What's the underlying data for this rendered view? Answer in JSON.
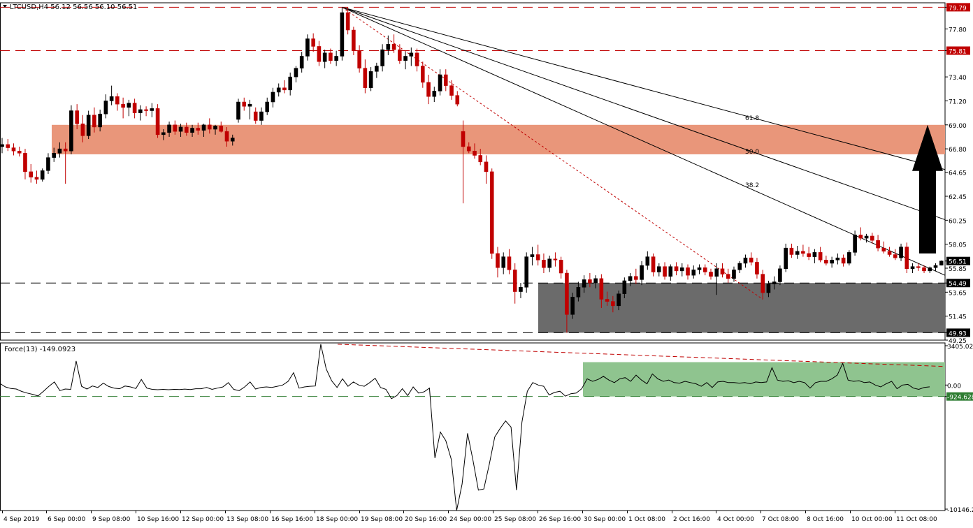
{
  "chart_data": [
    {
      "type": "candlestick",
      "title": "LTCUSD,H4  56.12 56.56 56.10 56.51",
      "symbol": "LTCUSD",
      "timeframe": "H4",
      "last_ohlc": {
        "open": 56.12,
        "high": 56.56,
        "low": 56.1,
        "close": 56.51
      },
      "ylim": [
        49.25,
        80.2
      ],
      "y_ticks": [
        79.79,
        77.8,
        75.81,
        73.4,
        71.2,
        69.0,
        66.8,
        64.65,
        62.45,
        60.25,
        58.05,
        56.51,
        55.85,
        54.49,
        53.65,
        51.45,
        49.93,
        49.25
      ],
      "y_tick_labels": [
        "79.79",
        "77.80",
        "75.81",
        "73.40",
        "71.20",
        "69.00",
        "66.80",
        "64.65",
        "62.45",
        "60.25",
        "58.05",
        "56.51",
        "55.85",
        "54.49",
        "53.65",
        "51.45",
        "49.93",
        "49.25"
      ],
      "highlighted_levels": [
        {
          "value": 79.79,
          "label": "79.79",
          "color": "#c00000"
        },
        {
          "value": 75.81,
          "label": "75.81",
          "color": "#c00000"
        },
        {
          "value": 56.51,
          "label": "56.51",
          "color": "#000000"
        },
        {
          "value": 54.49,
          "label": "54.49",
          "color": "#000000"
        },
        {
          "value": 49.93,
          "label": "49.93",
          "color": "#000000"
        }
      ],
      "x_labels": [
        "4 Sep 2019",
        "6 Sep 00:00",
        "9 Sep 08:00",
        "10 Sep 16:00",
        "12 Sep 00:00",
        "13 Sep 08:00",
        "16 Sep 16:00",
        "18 Sep 00:00",
        "19 Sep 08:00",
        "20 Sep 16:00",
        "24 Sep 00:00",
        "25 Sep 08:00",
        "26 Sep 16:00",
        "30 Sep 00:00",
        "1 Oct 08:00",
        "2 Oct 16:00",
        "4 Oct 00:00",
        "7 Oct 08:00",
        "8 Oct 16:00",
        "10 Oct 00:00",
        "11 Oct 08:00"
      ],
      "fib_labels": [
        "38.2",
        "50.0",
        "61.8"
      ],
      "resistance_zone": {
        "low": 66.3,
        "high": 69.0,
        "color": "#e9967a"
      },
      "support_zone": {
        "low": 49.93,
        "high": 54.49,
        "color": "#6b6b6b"
      },
      "colors": {
        "bull": "#000000",
        "bear": "#c00000",
        "arrow": "#000000"
      },
      "ohlc": [
        [
          67.0,
          67.8,
          66.4,
          67.2
        ],
        [
          67.2,
          67.7,
          66.6,
          66.9
        ],
        [
          66.9,
          67.3,
          66.2,
          66.6
        ],
        [
          66.6,
          67.0,
          66.1,
          66.4
        ],
        [
          66.4,
          66.8,
          64.0,
          64.7
        ],
        [
          64.7,
          65.4,
          63.7,
          64.2
        ],
        [
          64.2,
          64.8,
          63.6,
          64.0
        ],
        [
          64.0,
          65.0,
          63.8,
          64.8
        ],
        [
          64.8,
          66.4,
          64.5,
          66.0
        ],
        [
          66.0,
          66.9,
          65.6,
          66.4
        ],
        [
          66.4,
          67.4,
          66.0,
          66.8
        ],
        [
          66.8,
          67.4,
          63.6,
          66.6
        ],
        [
          66.6,
          70.8,
          66.3,
          70.3
        ],
        [
          70.3,
          70.9,
          68.6,
          69.1
        ],
        [
          69.1,
          69.9,
          67.4,
          68.0
        ],
        [
          68.0,
          70.3,
          67.7,
          69.9
        ],
        [
          69.9,
          70.6,
          68.3,
          68.8
        ],
        [
          68.8,
          70.4,
          68.4,
          70.0
        ],
        [
          70.0,
          71.8,
          69.6,
          71.2
        ],
        [
          71.2,
          72.6,
          70.8,
          71.6
        ],
        [
          71.6,
          71.9,
          70.3,
          70.9
        ],
        [
          70.9,
          71.5,
          69.6,
          70.6
        ],
        [
          70.6,
          71.3,
          69.8,
          71.0
        ],
        [
          71.0,
          71.4,
          69.6,
          70.1
        ],
        [
          70.1,
          70.8,
          69.4,
          70.4
        ],
        [
          70.4,
          70.7,
          69.8,
          70.3
        ],
        [
          70.3,
          71.0,
          69.7,
          70.5
        ],
        [
          70.5,
          70.9,
          67.8,
          68.1
        ],
        [
          68.1,
          68.6,
          67.6,
          68.3
        ],
        [
          68.3,
          69.3,
          67.9,
          69.0
        ],
        [
          69.0,
          69.4,
          68.1,
          68.4
        ],
        [
          68.4,
          69.1,
          67.9,
          68.8
        ],
        [
          68.8,
          69.2,
          68.0,
          68.3
        ],
        [
          68.3,
          69.0,
          67.9,
          68.7
        ],
        [
          68.7,
          69.2,
          68.1,
          68.5
        ],
        [
          68.5,
          69.1,
          67.9,
          69.0
        ],
        [
          69.0,
          69.6,
          68.2,
          68.6
        ],
        [
          68.6,
          69.0,
          68.1,
          68.9
        ],
        [
          68.9,
          69.3,
          68.3,
          68.4
        ],
        [
          68.4,
          68.8,
          67.0,
          67.5
        ],
        [
          67.5,
          68.1,
          67.1,
          67.8
        ],
        [
          69.5,
          71.4,
          69.2,
          71.1
        ],
        [
          71.1,
          71.5,
          70.3,
          70.7
        ],
        [
          70.7,
          71.3,
          69.5,
          70.9
        ],
        [
          70.2,
          70.6,
          69.1,
          69.4
        ],
        [
          69.4,
          70.6,
          69.0,
          70.2
        ],
        [
          70.2,
          71.5,
          69.9,
          71.1
        ],
        [
          71.1,
          72.4,
          70.6,
          72.0
        ],
        [
          72.0,
          72.8,
          71.6,
          72.4
        ],
        [
          72.4,
          73.1,
          71.9,
          72.2
        ],
        [
          72.2,
          73.8,
          71.7,
          73.4
        ],
        [
          73.4,
          74.4,
          72.9,
          74.2
        ],
        [
          74.2,
          75.7,
          73.8,
          75.3
        ],
        [
          75.3,
          77.3,
          74.9,
          76.9
        ],
        [
          76.9,
          77.4,
          75.7,
          76.2
        ],
        [
          76.2,
          76.7,
          74.4,
          74.8
        ],
        [
          74.8,
          75.9,
          74.2,
          75.6
        ],
        [
          75.6,
          76.0,
          74.6,
          74.9
        ],
        [
          74.9,
          75.8,
          74.4,
          75.3
        ],
        [
          75.3,
          79.8,
          74.9,
          79.3
        ],
        [
          79.3,
          79.8,
          77.3,
          77.7
        ],
        [
          77.7,
          78.0,
          75.4,
          75.8
        ],
        [
          75.8,
          76.3,
          73.8,
          74.2
        ],
        [
          74.2,
          75.0,
          71.9,
          72.4
        ],
        [
          72.4,
          74.3,
          72.1,
          73.9
        ],
        [
          73.9,
          74.7,
          73.3,
          74.4
        ],
        [
          74.4,
          76.4,
          73.9,
          75.9
        ],
        [
          75.9,
          77.2,
          75.4,
          76.4
        ],
        [
          76.4,
          77.3,
          75.6,
          75.9
        ],
        [
          75.9,
          76.4,
          74.6,
          74.9
        ],
        [
          74.9,
          75.7,
          74.1,
          75.3
        ],
        [
          75.3,
          76.1,
          74.4,
          75.6
        ],
        [
          75.6,
          76.0,
          73.9,
          74.4
        ],
        [
          74.4,
          74.8,
          72.4,
          72.9
        ],
        [
          72.9,
          73.6,
          70.9,
          71.6
        ],
        [
          71.6,
          72.5,
          71.1,
          72.1
        ],
        [
          72.1,
          74.1,
          71.7,
          73.6
        ],
        [
          73.6,
          74.1,
          72.1,
          72.6
        ],
        [
          72.6,
          73.1,
          71.3,
          71.7
        ],
        [
          71.7,
          72.1,
          70.7,
          70.9
        ],
        [
          68.4,
          69.4,
          61.8,
          67.0
        ],
        [
          67.0,
          67.4,
          66.4,
          66.6
        ],
        [
          66.6,
          67.3,
          65.9,
          66.2
        ],
        [
          66.2,
          66.8,
          65.3,
          65.6
        ],
        [
          65.6,
          66.2,
          63.6,
          64.7
        ],
        [
          64.7,
          65.0,
          56.7,
          57.2
        ],
        [
          57.2,
          57.8,
          55.0,
          55.9
        ],
        [
          55.9,
          57.3,
          55.3,
          56.9
        ],
        [
          56.9,
          57.6,
          55.3,
          55.7
        ],
        [
          55.7,
          56.3,
          52.6,
          53.7
        ],
        [
          53.7,
          54.5,
          53.1,
          54.1
        ],
        [
          54.1,
          57.3,
          53.6,
          56.9
        ],
        [
          56.9,
          57.8,
          56.1,
          57.1
        ],
        [
          57.1,
          58.0,
          56.1,
          56.6
        ],
        [
          56.6,
          57.2,
          55.4,
          55.9
        ],
        [
          55.9,
          57.0,
          55.5,
          56.7
        ],
        [
          56.7,
          57.3,
          56.0,
          56.6
        ],
        [
          56.6,
          56.9,
          54.9,
          55.4
        ],
        [
          55.4,
          55.7,
          49.93,
          51.6
        ],
        [
          51.6,
          53.6,
          51.2,
          53.2
        ],
        [
          53.2,
          54.6,
          52.8,
          54.1
        ],
        [
          54.1,
          55.2,
          53.6,
          54.8
        ],
        [
          54.8,
          55.4,
          54.1,
          54.5
        ],
        [
          54.5,
          55.2,
          54.0,
          54.9
        ],
        [
          54.9,
          55.3,
          52.2,
          53.0
        ],
        [
          53.0,
          53.7,
          52.4,
          52.8
        ],
        [
          52.8,
          53.3,
          51.8,
          52.4
        ],
        [
          52.4,
          53.8,
          52.0,
          53.5
        ],
        [
          53.5,
          55.0,
          53.1,
          54.7
        ],
        [
          54.7,
          55.4,
          54.2,
          55.1
        ],
        [
          55.1,
          55.8,
          54.4,
          54.8
        ],
        [
          54.8,
          56.5,
          54.3,
          56.1
        ],
        [
          56.1,
          57.4,
          55.7,
          56.9
        ],
        [
          56.9,
          57.2,
          55.1,
          55.5
        ],
        [
          55.5,
          56.3,
          55.1,
          56.0
        ],
        [
          56.0,
          56.4,
          54.8,
          55.1
        ],
        [
          55.1,
          56.2,
          54.7,
          56.0
        ],
        [
          56.0,
          56.4,
          55.2,
          55.6
        ],
        [
          55.6,
          56.3,
          55.1,
          55.9
        ],
        [
          55.9,
          56.2,
          54.8,
          55.2
        ],
        [
          55.2,
          56.1,
          54.9,
          55.7
        ],
        [
          55.7,
          56.2,
          55.3,
          55.9
        ],
        [
          55.9,
          56.2,
          55.2,
          55.5
        ],
        [
          55.5,
          55.8,
          54.8,
          55.1
        ],
        [
          55.1,
          56.3,
          53.4,
          55.8
        ],
        [
          55.8,
          56.3,
          55.0,
          55.3
        ],
        [
          55.3,
          55.8,
          54.5,
          54.9
        ],
        [
          54.9,
          56.0,
          54.6,
          55.7
        ],
        [
          55.7,
          56.5,
          55.4,
          56.3
        ],
        [
          56.3,
          57.1,
          55.9,
          56.8
        ],
        [
          56.8,
          57.3,
          56.1,
          56.4
        ],
        [
          56.4,
          56.8,
          54.9,
          55.3
        ],
        [
          55.3,
          55.7,
          53.0,
          53.6
        ],
        [
          53.6,
          54.7,
          53.2,
          54.4
        ],
        [
          54.4,
          55.1,
          53.9,
          54.6
        ],
        [
          54.6,
          56.1,
          54.3,
          55.8
        ],
        [
          55.8,
          58.1,
          55.5,
          57.7
        ],
        [
          57.7,
          58.1,
          56.8,
          57.1
        ],
        [
          57.1,
          57.9,
          56.7,
          57.4
        ],
        [
          57.4,
          58.0,
          56.9,
          57.2
        ],
        [
          57.2,
          57.8,
          56.6,
          56.9
        ],
        [
          56.9,
          57.6,
          56.3,
          57.3
        ],
        [
          57.3,
          57.8,
          56.4,
          56.6
        ],
        [
          56.6,
          57.0,
          56.1,
          56.3
        ],
        [
          56.3,
          56.9,
          55.9,
          56.6
        ],
        [
          56.6,
          57.2,
          56.2,
          56.8
        ],
        [
          56.8,
          57.1,
          56.0,
          56.3
        ],
        [
          56.3,
          57.5,
          56.1,
          57.3
        ],
        [
          57.3,
          59.3,
          57.0,
          58.9
        ],
        [
          58.9,
          59.6,
          58.4,
          58.6
        ],
        [
          58.6,
          59.0,
          58.2,
          58.8
        ],
        [
          58.8,
          59.1,
          58.1,
          58.4
        ],
        [
          58.4,
          58.9,
          57.4,
          57.7
        ],
        [
          57.7,
          58.3,
          57.2,
          57.4
        ],
        [
          57.4,
          57.8,
          56.9,
          57.1
        ],
        [
          57.1,
          57.6,
          56.6,
          56.8
        ],
        [
          56.8,
          58.1,
          56.5,
          57.8
        ],
        [
          57.8,
          58.2,
          55.4,
          55.8
        ],
        [
          55.8,
          56.3,
          55.4,
          56.0
        ],
        [
          56.0,
          56.3,
          55.6,
          55.9
        ],
        [
          55.9,
          56.1,
          55.4,
          55.6
        ],
        [
          55.6,
          56.0,
          55.4,
          55.9
        ],
        [
          55.9,
          56.3,
          55.6,
          56.1
        ],
        [
          56.12,
          56.56,
          56.1,
          56.51
        ]
      ]
    },
    {
      "type": "line",
      "title": "Force(13) -149.0923",
      "indicator": "Force(13)",
      "last_value": -149.0923,
      "ylim": [
        -10146.28,
        3405.02
      ],
      "y_tick_labels": [
        "3405.024",
        "0.00",
        "-924.628",
        "-10146.28"
      ],
      "reference_level": {
        "value": -924.628,
        "label": "-924.628",
        "color": "#2e7d32"
      },
      "zone": {
        "low": -924.628,
        "high": 1850,
        "color": "#8fc48f"
      },
      "values": [
        120,
        -150,
        -280,
        -320,
        -520,
        -650,
        -750,
        -880,
        -500,
        -100,
        250,
        -450,
        -320,
        -350,
        1950,
        -100,
        -320,
        -80,
        -200,
        150,
        -120,
        -250,
        -300,
        -80,
        -150,
        -280,
        450,
        -250,
        -350,
        -380,
        -350,
        -380,
        -350,
        -360,
        -330,
        -360,
        -300,
        -300,
        -200,
        -350,
        -250,
        -150,
        200,
        -350,
        -450,
        -150,
        250,
        -320,
        -200,
        -150,
        -200,
        -100,
        0,
        300,
        1000,
        -250,
        -150,
        -100,
        -80,
        3300,
        1300,
        350,
        -200,
        500,
        -100,
        250,
        0,
        -100,
        200,
        550,
        -200,
        -350,
        -1100,
        -850,
        -300,
        -850,
        -150,
        -650,
        -550,
        -250,
        -5900,
        -3800,
        -4500,
        -6000,
        -10146,
        -8000,
        -3900,
        -6100,
        -8500,
        -8400,
        -6400,
        -4200,
        -3500,
        -2900,
        -3400,
        -8500,
        -3000,
        -500,
        200,
        0,
        -100,
        -800,
        -600,
        -500,
        -900,
        -700,
        -650,
        -300,
        500,
        300,
        450,
        700,
        400,
        200,
        500,
        600,
        300,
        800,
        400,
        100,
        900,
        500,
        300,
        400,
        200,
        150,
        300,
        200,
        100,
        -100,
        200,
        -200,
        250,
        300,
        200,
        200,
        150,
        200,
        100,
        250,
        200,
        250,
        1400,
        400,
        300,
        350,
        200,
        300,
        200,
        -250,
        200,
        300,
        300,
        500,
        800,
        1750,
        400,
        300,
        350,
        200,
        250,
        0,
        -150,
        100,
        300,
        -300,
        0,
        50,
        -250,
        -350,
        -200,
        -149
      ]
    }
  ]
}
